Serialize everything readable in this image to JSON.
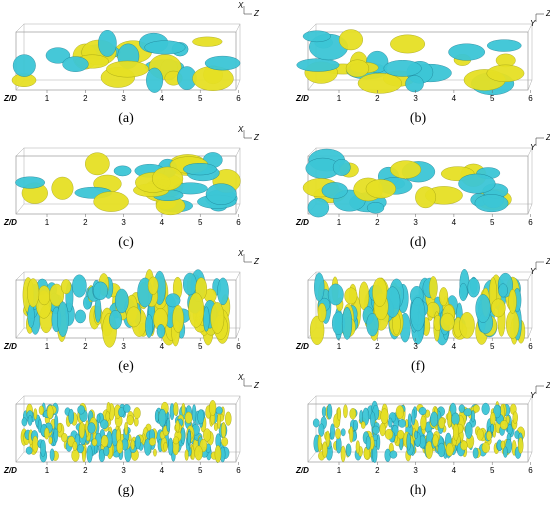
{
  "panels": [
    {
      "label": "(a)",
      "axis_label": "Z/D",
      "ticks": [
        1,
        2,
        3,
        4,
        5,
        6
      ],
      "triad": [
        "X",
        "Z"
      ]
    },
    {
      "label": "(b)",
      "axis_label": "Z/D",
      "ticks": [
        1,
        2,
        3,
        4,
        5,
        6
      ],
      "triad": [
        "Z",
        "Y"
      ]
    },
    {
      "label": "(c)",
      "axis_label": "Z/D",
      "ticks": [
        1,
        2,
        3,
        4,
        5,
        6
      ],
      "triad": [
        "X",
        "Z"
      ]
    },
    {
      "label": "(d)",
      "axis_label": "Z/D",
      "ticks": [
        1,
        2,
        3,
        4,
        5,
        6
      ],
      "triad": [
        "Z",
        "Y"
      ]
    },
    {
      "label": "(e)",
      "axis_label": "Z/D",
      "ticks": [
        1,
        2,
        3,
        4,
        5,
        6
      ],
      "triad": [
        "X",
        "Z"
      ]
    },
    {
      "label": "(f)",
      "axis_label": "Z/D",
      "ticks": [
        1,
        2,
        3,
        4,
        5,
        6
      ],
      "triad": [
        "Z",
        "Y"
      ]
    },
    {
      "label": "(g)",
      "axis_label": "Z/D",
      "ticks": [
        1,
        2,
        3,
        4,
        5,
        6
      ],
      "triad": [
        "X",
        "Z"
      ]
    },
    {
      "label": "(h)",
      "axis_label": "Z/D",
      "ticks": [
        1,
        2,
        3,
        4,
        5,
        6
      ],
      "triad": [
        "Z",
        "Y"
      ]
    }
  ]
}
